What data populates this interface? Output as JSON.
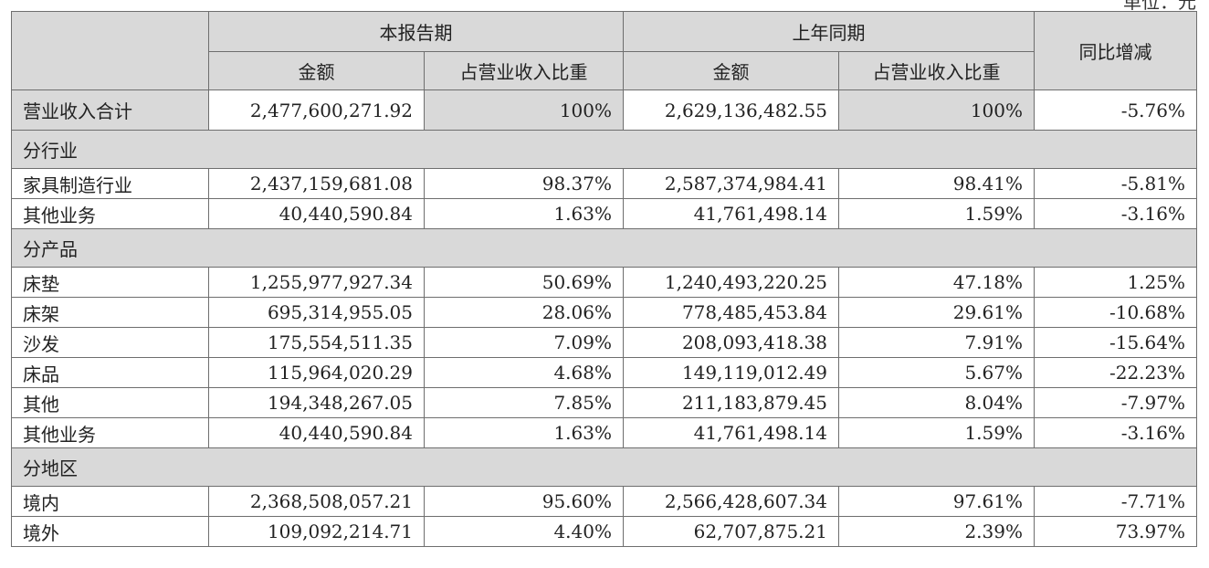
{
  "unit_label": "单位：元",
  "header": {
    "current_period": "本报告期",
    "prior_period": "上年同期",
    "amount": "金额",
    "ratio": "占营业收入比重",
    "yoy": "同比增减"
  },
  "total": {
    "label": "营业收入合计",
    "cur_amount": "2,477,600,271.92",
    "cur_ratio": "100%",
    "prior_amount": "2,629,136,482.55",
    "prior_ratio": "100%",
    "yoy": "-5.76%"
  },
  "sections": [
    {
      "title": "分行业",
      "rows": [
        {
          "label": "家具制造行业",
          "cur_amount": "2,437,159,681.08",
          "cur_ratio": "98.37%",
          "prior_amount": "2,587,374,984.41",
          "prior_ratio": "98.41%",
          "yoy": "-5.81%"
        },
        {
          "label": "其他业务",
          "cur_amount": "40,440,590.84",
          "cur_ratio": "1.63%",
          "prior_amount": "41,761,498.14",
          "prior_ratio": "1.59%",
          "yoy": "-3.16%"
        }
      ]
    },
    {
      "title": "分产品",
      "rows": [
        {
          "label": "床垫",
          "cur_amount": "1,255,977,927.34",
          "cur_ratio": "50.69%",
          "prior_amount": "1,240,493,220.25",
          "prior_ratio": "47.18%",
          "yoy": "1.25%"
        },
        {
          "label": "床架",
          "cur_amount": "695,314,955.05",
          "cur_ratio": "28.06%",
          "prior_amount": "778,485,453.84",
          "prior_ratio": "29.61%",
          "yoy": "-10.68%"
        },
        {
          "label": "沙发",
          "cur_amount": "175,554,511.35",
          "cur_ratio": "7.09%",
          "prior_amount": "208,093,418.38",
          "prior_ratio": "7.91%",
          "yoy": "-15.64%"
        },
        {
          "label": "床品",
          "cur_amount": "115,964,020.29",
          "cur_ratio": "4.68%",
          "prior_amount": "149,119,012.49",
          "prior_ratio": "5.67%",
          "yoy": "-22.23%"
        },
        {
          "label": "其他",
          "cur_amount": "194,348,267.05",
          "cur_ratio": "7.85%",
          "prior_amount": "211,183,879.45",
          "prior_ratio": "8.04%",
          "yoy": "-7.97%"
        },
        {
          "label": "其他业务",
          "cur_amount": "40,440,590.84",
          "cur_ratio": "1.63%",
          "prior_amount": "41,761,498.14",
          "prior_ratio": "1.59%",
          "yoy": "-3.16%"
        }
      ]
    },
    {
      "title": "分地区",
      "rows": [
        {
          "label": "境内",
          "cur_amount": "2,368,508,057.21",
          "cur_ratio": "95.60%",
          "prior_amount": "2,566,428,607.34",
          "prior_ratio": "97.61%",
          "yoy": "-7.71%"
        },
        {
          "label": "境外",
          "cur_amount": "109,092,214.71",
          "cur_ratio": "4.40%",
          "prior_amount": "62,707,875.21",
          "prior_ratio": "2.39%",
          "yoy": "73.97%"
        }
      ]
    }
  ]
}
